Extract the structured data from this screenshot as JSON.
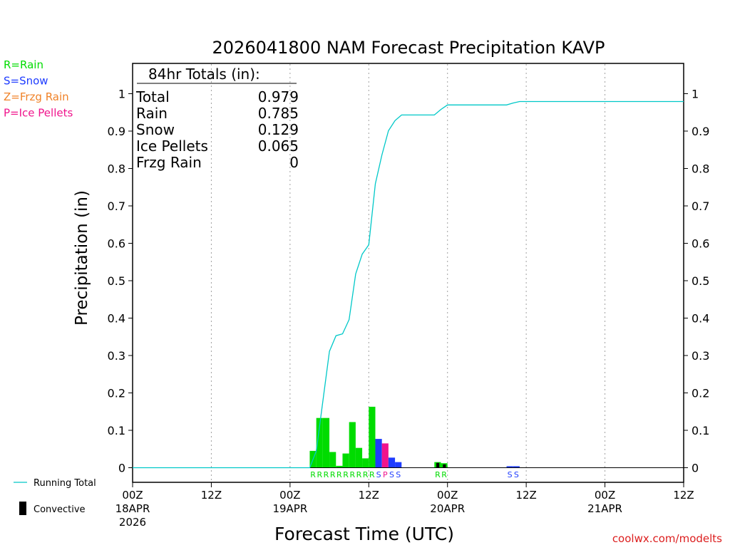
{
  "chart_data": {
    "type": "bar",
    "title": "2026041800 NAM Forecast Precipitation KAVP",
    "xlabel": "Forecast Time (UTC)",
    "ylabel": "Precipitation (in)",
    "ylim": [
      0,
      1.08
    ],
    "xlim": [
      0,
      84
    ],
    "grid": "dotted vertical at 12-hour intervals",
    "yticks": [
      {
        "v": 0,
        "label": "0"
      },
      {
        "v": 0.1,
        "label": "0.1"
      },
      {
        "v": 0.2,
        "label": "0.2"
      },
      {
        "v": 0.3,
        "label": "0.3"
      },
      {
        "v": 0.4,
        "label": "0.4"
      },
      {
        "v": 0.5,
        "label": "0.5"
      },
      {
        "v": 0.6,
        "label": "0.6"
      },
      {
        "v": 0.7,
        "label": "0.7"
      },
      {
        "v": 0.8,
        "label": "0.8"
      },
      {
        "v": 0.9,
        "label": "0.9"
      },
      {
        "v": 1.0,
        "label": "1"
      }
    ],
    "xticks": [
      {
        "h": 0,
        "l1": "00Z",
        "l2": "18APR",
        "l3": "2026"
      },
      {
        "h": 12,
        "l1": "12Z",
        "l2": "",
        "l3": ""
      },
      {
        "h": 24,
        "l1": "00Z",
        "l2": "19APR",
        "l3": ""
      },
      {
        "h": 36,
        "l1": "12Z",
        "l2": "",
        "l3": ""
      },
      {
        "h": 48,
        "l1": "00Z",
        "l2": "20APR",
        "l3": ""
      },
      {
        "h": 60,
        "l1": "12Z",
        "l2": "",
        "l3": ""
      },
      {
        "h": 72,
        "l1": "00Z",
        "l2": "21APR",
        "l3": ""
      },
      {
        "h": 84,
        "l1": "12Z",
        "l2": "",
        "l3": ""
      }
    ],
    "bars": [
      {
        "h": 28,
        "v": 0.045,
        "type": "R"
      },
      {
        "h": 29,
        "v": 0.133,
        "type": "R"
      },
      {
        "h": 30,
        "v": 0.133,
        "type": "R"
      },
      {
        "h": 31,
        "v": 0.042,
        "type": "R"
      },
      {
        "h": 32,
        "v": 0.005,
        "type": "R"
      },
      {
        "h": 33,
        "v": 0.038,
        "type": "R"
      },
      {
        "h": 34,
        "v": 0.122,
        "type": "R"
      },
      {
        "h": 35,
        "v": 0.053,
        "type": "R"
      },
      {
        "h": 36,
        "v": 0.025,
        "type": "R"
      },
      {
        "h": 37,
        "v": 0.163,
        "type": "R"
      },
      {
        "h": 38,
        "v": 0.077,
        "type": "S"
      },
      {
        "h": 39,
        "v": 0.065,
        "type": "P"
      },
      {
        "h": 40,
        "v": 0.027,
        "type": "S"
      },
      {
        "h": 41,
        "v": 0.015,
        "type": "S"
      },
      {
        "h": 47,
        "v": 0.015,
        "type": "R"
      },
      {
        "h": 48,
        "v": 0.012,
        "type": "R"
      },
      {
        "h": 58,
        "v": 0.004,
        "type": "S"
      },
      {
        "h": 59,
        "v": 0.004,
        "type": "S"
      }
    ],
    "convective": [
      {
        "h": 47,
        "v": 0.013
      },
      {
        "h": 48,
        "v": 0.009
      }
    ],
    "running_total": {
      "x": [
        0,
        27,
        28,
        29,
        30,
        31,
        32,
        33,
        34,
        35,
        36,
        37,
        38,
        39,
        40,
        41,
        42,
        43,
        44,
        45,
        46,
        47,
        48,
        49,
        50,
        51,
        52,
        53,
        54,
        55,
        56,
        57,
        58,
        59,
        60,
        84
      ],
      "y": [
        0,
        0,
        0.045,
        0.178,
        0.311,
        0.353,
        0.358,
        0.396,
        0.518,
        0.571,
        0.596,
        0.759,
        0.836,
        0.901,
        0.928,
        0.943,
        0.943,
        0.943,
        0.943,
        0.943,
        0.943,
        0.958,
        0.97,
        0.97,
        0.97,
        0.97,
        0.97,
        0.97,
        0.97,
        0.97,
        0.97,
        0.97,
        0.975,
        0.979,
        0.979,
        0.979
      ]
    },
    "series": [
      {
        "name": "Running Total",
        "color": "#00c8c8"
      },
      {
        "name": "Rain",
        "code": "R",
        "color": "#00dc00"
      },
      {
        "name": "Snow",
        "code": "S",
        "color": "#1e3cff"
      },
      {
        "name": "Frzg Rain",
        "code": "Z",
        "color": "#f08228"
      },
      {
        "name": "Ice Pellets",
        "code": "P",
        "color": "#f0148c"
      },
      {
        "name": "Convective",
        "color": "#000000"
      }
    ],
    "type_labels": [
      {
        "h": 28,
        "c": "R",
        "color": "#00dc00"
      },
      {
        "h": 29,
        "c": "R",
        "color": "#00dc00"
      },
      {
        "h": 30,
        "c": "R",
        "color": "#00dc00"
      },
      {
        "h": 31,
        "c": "R",
        "color": "#00dc00"
      },
      {
        "h": 32,
        "c": "R",
        "color": "#00dc00"
      },
      {
        "h": 33,
        "c": "R",
        "color": "#00dc00"
      },
      {
        "h": 34,
        "c": "R",
        "color": "#00dc00"
      },
      {
        "h": 35,
        "c": "R",
        "color": "#00dc00"
      },
      {
        "h": 36,
        "c": "R",
        "color": "#00dc00"
      },
      {
        "h": 37,
        "c": "R",
        "color": "#00dc00"
      },
      {
        "h": 38,
        "c": "S",
        "color": "#1e3cff"
      },
      {
        "h": 39,
        "c": "P",
        "color": "#f0148c"
      },
      {
        "h": 40,
        "c": "S",
        "color": "#1e3cff"
      },
      {
        "h": 41,
        "c": "S",
        "color": "#1e3cff"
      },
      {
        "h": 47,
        "c": "R",
        "color": "#00dc00"
      },
      {
        "h": 48,
        "c": "R",
        "color": "#00dc00"
      },
      {
        "h": 58,
        "c": "S",
        "color": "#1e3cff"
      },
      {
        "h": 59,
        "c": "S",
        "color": "#1e3cff"
      }
    ],
    "totals": {
      "header": "84hr Totals (in):",
      "rows": [
        {
          "label": "Total",
          "value": "0.979"
        },
        {
          "label": "Rain",
          "value": "0.785"
        },
        {
          "label": "Snow",
          "value": "0.129"
        },
        {
          "label": "Ice Pellets",
          "value": "0.065"
        },
        {
          "label": "Frzg Rain",
          "value": "0"
        }
      ]
    },
    "key": [
      {
        "text": "R=Rain",
        "color": "#00dc00"
      },
      {
        "text": "S=Snow",
        "color": "#1e3cff"
      },
      {
        "text": "Z=Frzg Rain",
        "color": "#f08228"
      },
      {
        "text": "P=Ice Pellets",
        "color": "#f0148c"
      }
    ],
    "legend": {
      "running_total": "Running Total",
      "convective": "Convective"
    },
    "credit": "coolwx.com/modelts"
  }
}
